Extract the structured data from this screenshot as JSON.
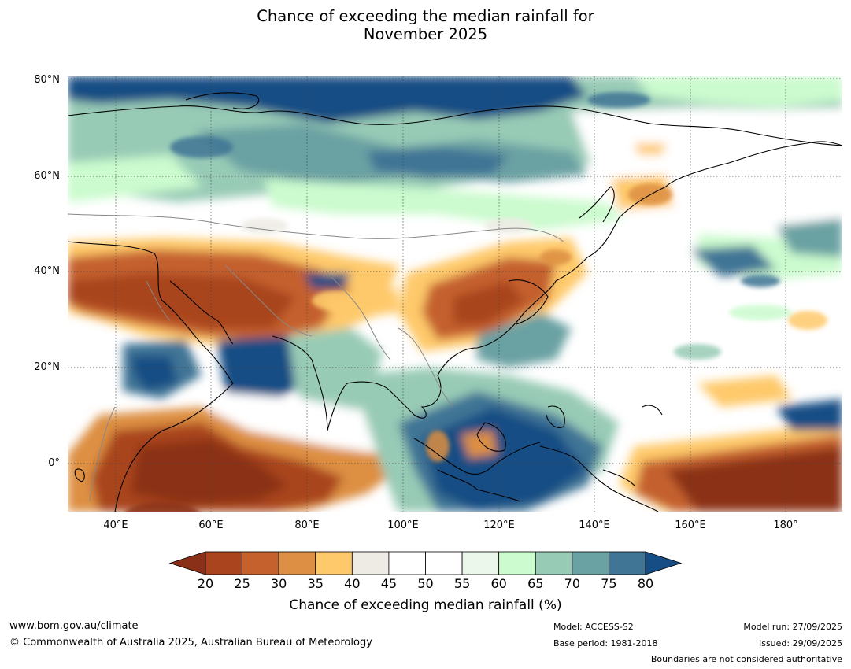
{
  "title": [
    "Chance of exceeding the median rainfall for",
    "November 2025"
  ],
  "map": {
    "lat_labels": [
      "80°N",
      "60°N",
      "40°N",
      "20°N",
      "0°"
    ],
    "lon_labels": [
      "40°E",
      "60°E",
      "80°E",
      "100°E",
      "120°E",
      "140°E",
      "160°E",
      "180°"
    ],
    "gridlines": "dotted"
  },
  "colorbar": {
    "ticks": [
      "20",
      "25",
      "30",
      "35",
      "40",
      "45",
      "50",
      "55",
      "60",
      "65",
      "70",
      "75",
      "80"
    ],
    "colors": [
      "#8b3018",
      "#a9441f",
      "#c4612d",
      "#dd8f43",
      "#fec96a",
      "#eeebe4",
      "#ffffff",
      "#ffffff",
      "#eaf7ea",
      "#cbfbce",
      "#98cbb6",
      "#6aa1a3",
      "#417595",
      "#154d84"
    ],
    "extend": "both",
    "label": "Chance of exceeding median rainfall (%)"
  },
  "footer": {
    "website": "www.bom.gov.au/climate",
    "copyright": "© Commonwealth of Australia 2025, Australian Bureau of Meteorology",
    "model": "Model: ACCESS-S2",
    "base_period": "Base period: 1981-2018",
    "model_run": "Model run: 27/09/2025",
    "issued": "Issued: 29/09/2025",
    "disclaimer": "Boundaries are not considered authoritative"
  }
}
